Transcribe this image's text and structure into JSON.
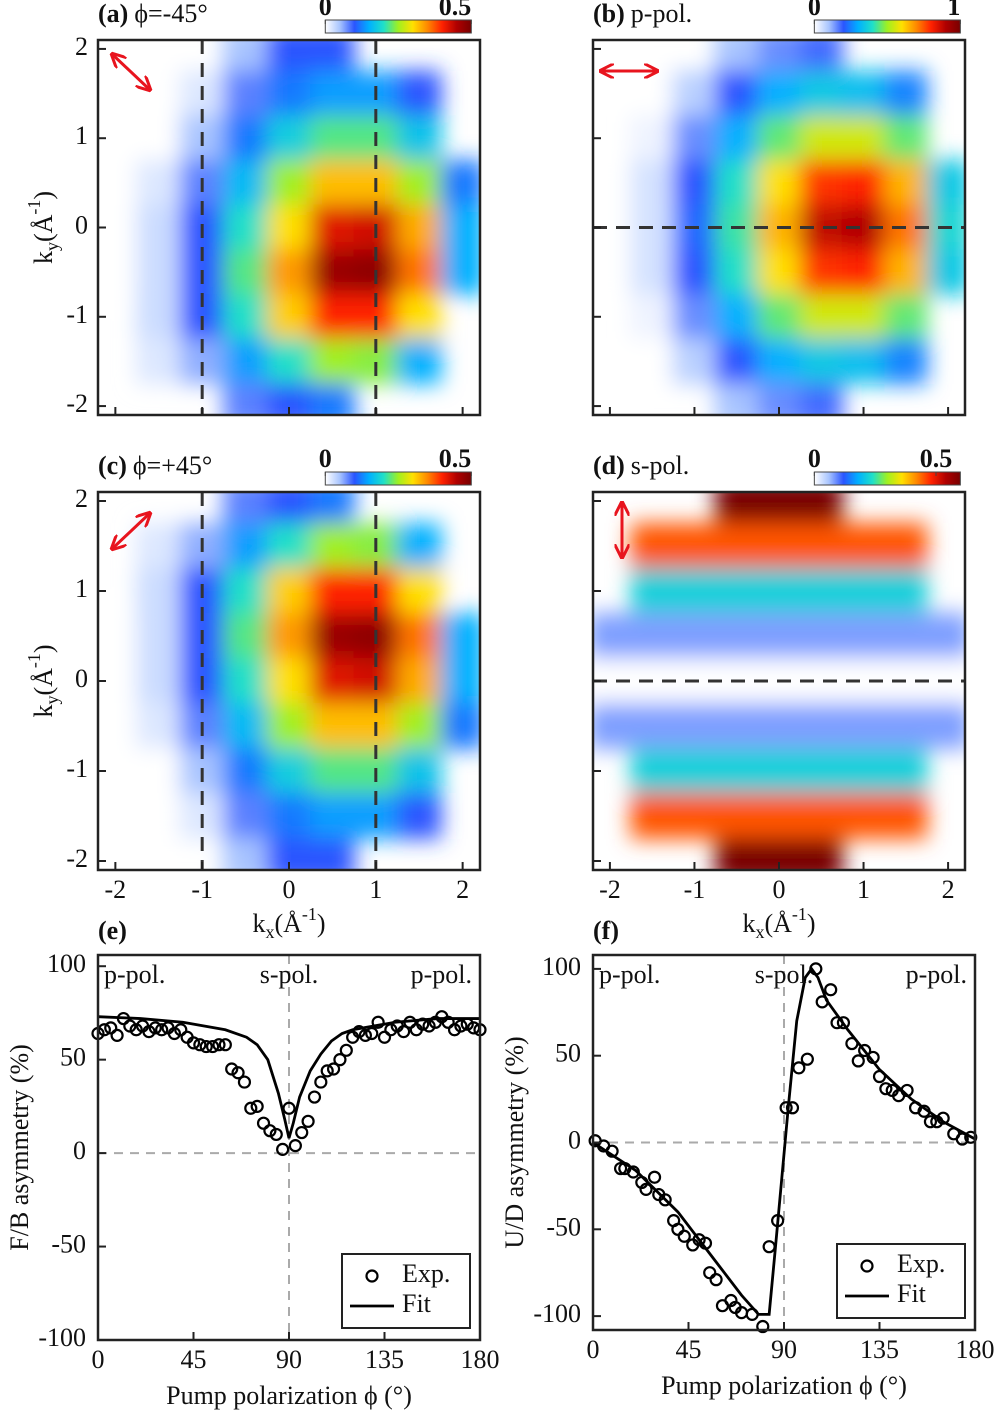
{
  "chart_data": [
    {
      "type": "heatmap",
      "label": "(a)",
      "title": "ϕ=-45°",
      "x": [
        -2,
        -1.5,
        -1,
        -0.5,
        0,
        0.5,
        1,
        1.5,
        2
      ],
      "y": [
        2,
        1.5,
        1,
        0.5,
        0,
        -0.5,
        -1,
        -1.5,
        -2
      ],
      "z": [
        [
          null,
          null,
          null,
          0.05,
          0.1,
          0.1,
          null,
          null,
          null
        ],
        [
          null,
          0,
          0.02,
          0.08,
          0.12,
          0.14,
          0.14,
          0.1,
          null
        ],
        [
          null,
          0,
          0.05,
          0.12,
          0.18,
          0.22,
          0.22,
          0.17,
          null
        ],
        [
          0,
          0.02,
          0.08,
          0.16,
          0.25,
          0.32,
          0.32,
          0.25,
          0.12
        ],
        [
          0,
          0.03,
          0.1,
          0.2,
          0.3,
          0.42,
          0.43,
          0.33,
          0.15
        ],
        [
          0,
          0.03,
          0.1,
          0.22,
          0.34,
          0.47,
          0.48,
          0.36,
          0.15
        ],
        [
          null,
          0.03,
          0.1,
          0.2,
          0.31,
          0.4,
          0.4,
          0.3,
          null
        ],
        [
          null,
          0.02,
          0.06,
          0.14,
          0.2,
          0.25,
          0.24,
          0.15,
          null
        ],
        [
          null,
          null,
          null,
          0.08,
          0.1,
          0.12,
          null,
          null,
          null
        ]
      ],
      "clim": [
        0,
        0.5
      ],
      "cticks": [
        0,
        0.5
      ],
      "colormap": [
        "#ffffff",
        "#a8c4ff",
        "#2a55ff",
        "#00b0ff",
        "#20e0c8",
        "#a0f020",
        "#ffe000",
        "#ff8800",
        "#ff2200",
        "#b00000",
        "#780000"
      ],
      "xlim": [
        -2.2,
        2.2
      ],
      "ylim": [
        -2.1,
        2.1
      ],
      "xticks": [
        -2,
        -1,
        0,
        1,
        2
      ],
      "yticks": [
        -2,
        -1,
        0,
        1,
        2
      ],
      "xtick_labels": false,
      "ytick_labels": true,
      "ylabel": [
        "k",
        "y",
        "(Å",
        "-1",
        ")"
      ],
      "vlines": [
        -1,
        1
      ]
    },
    {
      "type": "heatmap",
      "label": "(b)",
      "title": "p-pol.",
      "x": [
        -2,
        -1.5,
        -1,
        -0.5,
        0,
        0.5,
        1,
        1.5,
        2
      ],
      "y": [
        2,
        1.5,
        1,
        0.5,
        0,
        -0.5,
        -1,
        -1.5,
        -2
      ],
      "z": [
        [
          null,
          null,
          null,
          0.1,
          0.15,
          0.18,
          null,
          null,
          null
        ],
        [
          null,
          0,
          0.08,
          0.2,
          0.3,
          0.35,
          0.33,
          0.25,
          null
        ],
        [
          null,
          0.02,
          0.15,
          0.3,
          0.45,
          0.55,
          0.55,
          0.45,
          null
        ],
        [
          0,
          0.05,
          0.2,
          0.4,
          0.6,
          0.78,
          0.8,
          0.65,
          0.35
        ],
        [
          0,
          0.05,
          0.22,
          0.42,
          0.65,
          0.88,
          0.9,
          0.72,
          0.38
        ],
        [
          0,
          0.05,
          0.2,
          0.4,
          0.6,
          0.78,
          0.8,
          0.65,
          0.35
        ],
        [
          null,
          0.02,
          0.15,
          0.3,
          0.45,
          0.55,
          0.55,
          0.45,
          null
        ],
        [
          null,
          0,
          0.08,
          0.2,
          0.3,
          0.35,
          0.33,
          0.25,
          null
        ],
        [
          null,
          null,
          null,
          0.1,
          0.15,
          0.18,
          null,
          null,
          null
        ]
      ],
      "clim": [
        0,
        1
      ],
      "cticks": [
        0,
        1
      ],
      "colormap": [
        "#ffffff",
        "#a8c4ff",
        "#2a55ff",
        "#00b0ff",
        "#20e0c8",
        "#a0f020",
        "#ffe000",
        "#ff8800",
        "#ff2200",
        "#b00000",
        "#780000"
      ],
      "xlim": [
        -2.2,
        2.2
      ],
      "ylim": [
        -2.1,
        2.1
      ],
      "xticks": [
        -2,
        -1,
        0,
        1,
        2
      ],
      "yticks": [
        -2,
        -1,
        0,
        1,
        2
      ],
      "xtick_labels": false,
      "ytick_labels": false,
      "hlines": [
        0
      ]
    },
    {
      "type": "heatmap",
      "label": "(c)",
      "title": "ϕ=+45°",
      "x": [
        -2,
        -1.5,
        -1,
        -0.5,
        0,
        0.5,
        1,
        1.5,
        2
      ],
      "y": [
        2,
        1.5,
        1,
        0.5,
        0,
        -0.5,
        -1,
        -1.5,
        -2
      ],
      "z": [
        [
          null,
          null,
          null,
          0.08,
          0.1,
          0.12,
          null,
          null,
          null
        ],
        [
          null,
          0.02,
          0.06,
          0.14,
          0.2,
          0.25,
          0.24,
          0.15,
          null
        ],
        [
          null,
          0.03,
          0.1,
          0.2,
          0.31,
          0.4,
          0.4,
          0.3,
          null
        ],
        [
          0,
          0.03,
          0.1,
          0.22,
          0.34,
          0.47,
          0.48,
          0.36,
          0.15
        ],
        [
          0,
          0.03,
          0.1,
          0.2,
          0.3,
          0.42,
          0.43,
          0.33,
          0.15
        ],
        [
          0,
          0.02,
          0.08,
          0.16,
          0.25,
          0.32,
          0.32,
          0.25,
          0.12
        ],
        [
          null,
          0,
          0.05,
          0.12,
          0.18,
          0.22,
          0.22,
          0.17,
          null
        ],
        [
          null,
          0,
          0.02,
          0.08,
          0.12,
          0.14,
          0.14,
          0.1,
          null
        ],
        [
          null,
          null,
          null,
          0.05,
          0.1,
          0.1,
          null,
          null,
          null
        ]
      ],
      "clim": [
        0,
        0.5
      ],
      "cticks": [
        0,
        0.5
      ],
      "colormap": [
        "#ffffff",
        "#a8c4ff",
        "#2a55ff",
        "#00b0ff",
        "#20e0c8",
        "#a0f020",
        "#ffe000",
        "#ff8800",
        "#ff2200",
        "#b00000",
        "#780000"
      ],
      "xlim": [
        -2.2,
        2.2
      ],
      "ylim": [
        -2.1,
        2.1
      ],
      "xticks": [
        -2,
        -1,
        0,
        1,
        2
      ],
      "yticks": [
        -2,
        -1,
        0,
        1,
        2
      ],
      "xtick_labels": true,
      "ytick_labels": true,
      "ylabel": [
        "k",
        "y",
        "(Å",
        "-1",
        ")"
      ],
      "xlabel": [
        "k",
        "x",
        "(Å",
        "-1",
        ")"
      ],
      "vlines": [
        -1,
        1
      ]
    },
    {
      "type": "heatmap",
      "label": "(d)",
      "title": "s-pol.",
      "x": [
        -2,
        -1.5,
        -1,
        -0.5,
        0,
        0.5,
        1,
        1.5,
        2
      ],
      "y": [
        2,
        1.5,
        1,
        0.5,
        0,
        -0.5,
        -1,
        -1.5,
        -2
      ],
      "z": [
        [
          null,
          null,
          null,
          0.6,
          0.6,
          0.6,
          null,
          null,
          null
        ],
        [
          null,
          0.45,
          0.45,
          0.45,
          0.45,
          0.45,
          0.45,
          0.45,
          null
        ],
        [
          null,
          0.22,
          0.22,
          0.22,
          0.22,
          0.22,
          0.22,
          0.22,
          null
        ],
        [
          0.08,
          0.08,
          0.08,
          0.08,
          0.08,
          0.08,
          0.08,
          0.08,
          0.08
        ],
        [
          0,
          0,
          0,
          0,
          0,
          0,
          0,
          0,
          0
        ],
        [
          0.08,
          0.08,
          0.08,
          0.08,
          0.08,
          0.08,
          0.08,
          0.08,
          0.08
        ],
        [
          null,
          0.22,
          0.22,
          0.22,
          0.22,
          0.22,
          0.22,
          0.22,
          null
        ],
        [
          null,
          0.45,
          0.45,
          0.45,
          0.45,
          0.45,
          0.45,
          0.45,
          null
        ],
        [
          null,
          null,
          null,
          0.6,
          0.6,
          0.6,
          null,
          null,
          null
        ]
      ],
      "clim": [
        0,
        0.6
      ],
      "cticks": [
        0,
        0.5
      ],
      "colormap": [
        "#ffffff",
        "#a8c4ff",
        "#2a55ff",
        "#00b0ff",
        "#20e0c8",
        "#a0f020",
        "#ffe000",
        "#ff8800",
        "#ff2200",
        "#b00000",
        "#780000"
      ],
      "xlim": [
        -2.2,
        2.2
      ],
      "ylim": [
        -2.1,
        2.1
      ],
      "xticks": [
        -2,
        -1,
        0,
        1,
        2
      ],
      "yticks": [
        -2,
        -1,
        0,
        1,
        2
      ],
      "xtick_labels": true,
      "ytick_labels": false,
      "xlabel": [
        "k",
        "x",
        "(Å",
        "-1",
        ")"
      ],
      "hlines": [
        0
      ]
    },
    {
      "type": "line",
      "label": "(e)",
      "ylabel": "F/B asymmetry (%)",
      "xlabel": "Pump polarization ϕ  (°)",
      "annotations": [
        "p-pol.",
        "s-pol.",
        "p-pol."
      ],
      "xlim": [
        0,
        180
      ],
      "ylim": [
        -100,
        106
      ],
      "xticks": [
        0,
        45,
        90,
        135,
        180
      ],
      "yticks": [
        -100,
        -50,
        0,
        50,
        100
      ],
      "vlines": [
        90
      ],
      "hlines": [
        0
      ],
      "legend": "lower right",
      "series": [
        {
          "name": "Exp.",
          "color": "#000000",
          "marker": "circle",
          "x": [
            0,
            3,
            6,
            9,
            12,
            15,
            18,
            21,
            24,
            27,
            30,
            33,
            36,
            39,
            42,
            45,
            48,
            51,
            54,
            57,
            60,
            63,
            66,
            69,
            72,
            75,
            78,
            81,
            84,
            87,
            90,
            93,
            96,
            99,
            102,
            105,
            108,
            111,
            114,
            117,
            120,
            123,
            126,
            129,
            132,
            135,
            138,
            141,
            144,
            147,
            150,
            153,
            156,
            159,
            162,
            165,
            168,
            171,
            174,
            177,
            180
          ],
          "values": [
            64,
            66,
            67,
            63,
            72,
            68,
            66,
            68,
            65,
            67,
            66,
            67,
            64,
            66,
            62,
            59,
            58,
            57,
            57,
            58,
            58,
            45,
            43,
            38,
            24,
            25,
            16,
            12,
            10,
            2,
            24,
            4,
            11,
            17,
            30,
            38,
            44,
            45,
            50,
            55,
            62,
            65,
            63,
            64,
            70,
            62,
            66,
            68,
            65,
            70,
            66,
            69,
            68,
            70,
            73,
            70,
            66,
            68,
            69,
            67,
            66
          ]
        },
        {
          "name": "Fit",
          "color": "#000000",
          "x": [
            0,
            20,
            40,
            60,
            70,
            75,
            80,
            85,
            88,
            90,
            92,
            95,
            100,
            105,
            110,
            115,
            120,
            140,
            160,
            180
          ],
          "values": [
            73,
            72,
            70,
            66,
            62,
            58,
            50,
            32,
            18,
            8,
            16,
            30,
            44,
            53,
            60,
            64,
            66,
            70,
            72,
            72
          ]
        }
      ]
    },
    {
      "type": "line",
      "label": "(f)",
      "ylabel": "U/D asymmetry (%)",
      "xlabel": "Pump polarization ϕ  (°)",
      "annotations": [
        "p-pol.",
        "s-pol.",
        "p-pol."
      ],
      "xlim": [
        0,
        180
      ],
      "ylim": [
        -108,
        108
      ],
      "xticks": [
        0,
        45,
        90,
        135,
        180
      ],
      "yticks": [
        -100,
        -50,
        0,
        50,
        100
      ],
      "vlines": [
        90
      ],
      "hlines": [
        0
      ],
      "legend": "lower right",
      "series": [
        {
          "name": "Exp.",
          "color": "#000000",
          "marker": "circle",
          "x": [
            1,
            5,
            9,
            13,
            15,
            19,
            23,
            25,
            29,
            31,
            34,
            38,
            40,
            43,
            47,
            50,
            53,
            55,
            58,
            61,
            65,
            67,
            70,
            75,
            80,
            83,
            87,
            91,
            94,
            97,
            101,
            105,
            108,
            112,
            115,
            118,
            122,
            125,
            128,
            132,
            135,
            138,
            141,
            144,
            148,
            152,
            156,
            159,
            162,
            165,
            170,
            174,
            178
          ],
          "values": [
            1,
            -2,
            -5,
            -15,
            -15,
            -17,
            -23,
            -27,
            -20,
            -30,
            -33,
            -45,
            -50,
            -54,
            -59,
            -56,
            -58,
            -75,
            -79,
            -94,
            -91,
            -95,
            -98,
            -99,
            -106,
            -60,
            -45,
            20,
            20,
            43,
            48,
            100,
            81,
            88,
            69,
            69,
            57,
            47,
            53,
            49,
            38,
            31,
            30,
            27,
            30,
            20,
            18,
            12,
            12,
            14,
            5,
            2,
            3
          ]
        },
        {
          "name": "Fit",
          "color": "#000000",
          "x": [
            0,
            20,
            40,
            60,
            70,
            78,
            83,
            86,
            89,
            92,
            96,
            100,
            103,
            106,
            110,
            120,
            135,
            150,
            165,
            180
          ],
          "values": [
            0,
            -16,
            -40,
            -72,
            -88,
            -99,
            -99,
            -60,
            -20,
            20,
            70,
            95,
            100,
            95,
            82,
            65,
            42,
            25,
            12,
            2
          ]
        }
      ]
    }
  ]
}
